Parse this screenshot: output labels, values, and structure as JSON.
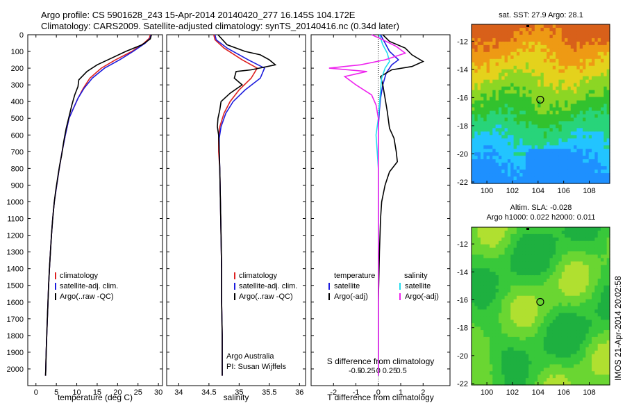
{
  "header": {
    "line1": "Argo profile: CS 5901628_243 15-Apr-2014 20140420_277 16.145S 104.172E",
    "line2": "Climatology: CARS2009. Satellite-adjusted climatology: synTS_20140416.nc (0.34d later)"
  },
  "side_label": "IMOS 21-Apr-2014 20:02:58",
  "colors": {
    "climatology": "#dd2020",
    "satellite": "#1c1cdd",
    "argo": "#000000",
    "satellite_diff_s": "#22ddee",
    "argo_diff_s": "#ee22ee"
  },
  "chart_data": [
    {
      "id": "temperature",
      "type": "line",
      "xlabel": "temperature (deg C)",
      "ylabel": "",
      "xlim": [
        -2,
        31
      ],
      "ylim": [
        2100,
        0
      ],
      "xticks": [
        0,
        5,
        10,
        15,
        20,
        25,
        30
      ],
      "yticks": [
        0,
        100,
        200,
        300,
        400,
        500,
        600,
        700,
        800,
        900,
        1000,
        1100,
        1200,
        1300,
        1400,
        1500,
        1600,
        1700,
        1800,
        1900,
        2000
      ],
      "legend": [
        "climatology",
        "satellite-adj. clim.",
        "Argo(..raw -QC)"
      ],
      "series": [
        {
          "name": "climatology",
          "color": "#dd2020",
          "points": [
            [
              28,
              0
            ],
            [
              27.8,
              20
            ],
            [
              26.5,
              50
            ],
            [
              23.5,
              100
            ],
            [
              19.5,
              150
            ],
            [
              16,
              200
            ],
            [
              13.2,
              260
            ],
            [
              11.6,
              320
            ],
            [
              10.3,
              380
            ],
            [
              9.2,
              440
            ],
            [
              8.1,
              500
            ],
            [
              7.2,
              600
            ],
            [
              6.4,
              700
            ],
            [
              5.7,
              800
            ],
            [
              5.1,
              900
            ],
            [
              4.5,
              1000
            ],
            [
              4.1,
              1100
            ],
            [
              3.8,
              1200
            ],
            [
              3.55,
              1300
            ],
            [
              3.3,
              1400
            ],
            [
              3.1,
              1500
            ],
            [
              2.95,
              1600
            ],
            [
              2.8,
              1700
            ],
            [
              2.65,
              1800
            ],
            [
              2.5,
              1900
            ],
            [
              2.4,
              2000
            ],
            [
              2.35,
              2040
            ]
          ]
        },
        {
          "name": "satellite-adj. clim.",
          "color": "#1c1cdd",
          "points": [
            [
              28.2,
              0
            ],
            [
              28,
              20
            ],
            [
              26.8,
              50
            ],
            [
              23.8,
              100
            ],
            [
              20.5,
              150
            ],
            [
              16.8,
              200
            ],
            [
              13.8,
              260
            ],
            [
              11.8,
              320
            ],
            [
              10.3,
              380
            ],
            [
              9.2,
              440
            ],
            [
              8.1,
              500
            ],
            [
              7.2,
              600
            ],
            [
              6.4,
              700
            ],
            [
              5.7,
              800
            ],
            [
              5.1,
              900
            ],
            [
              4.5,
              1000
            ],
            [
              4.1,
              1100
            ],
            [
              3.8,
              1200
            ],
            [
              3.55,
              1300
            ],
            [
              3.3,
              1400
            ],
            [
              3.1,
              1500
            ],
            [
              2.95,
              1600
            ],
            [
              2.8,
              1700
            ],
            [
              2.65,
              1800
            ],
            [
              2.5,
              1900
            ],
            [
              2.4,
              2000
            ],
            [
              2.35,
              2040
            ]
          ]
        },
        {
          "name": "Argo(..raw -QC)",
          "color": "#000000",
          "points": [
            [
              28.3,
              0
            ],
            [
              28,
              25
            ],
            [
              26,
              60
            ],
            [
              22,
              100
            ],
            [
              18.5,
              140
            ],
            [
              15,
              180
            ],
            [
              12.5,
              220
            ],
            [
              10.5,
              270
            ],
            [
              10.3,
              310
            ],
            [
              9.5,
              360
            ],
            [
              8.8,
              420
            ],
            [
              8.2,
              480
            ],
            [
              7.4,
              560
            ],
            [
              6.8,
              640
            ],
            [
              6.3,
              720
            ],
            [
              5.8,
              780
            ],
            [
              5.3,
              860
            ],
            [
              4.8,
              940
            ],
            [
              4.5,
              1000
            ],
            [
              4.1,
              1100
            ],
            [
              3.8,
              1200
            ],
            [
              3.55,
              1300
            ],
            [
              3.3,
              1400
            ],
            [
              3.1,
              1500
            ],
            [
              2.95,
              1600
            ],
            [
              2.8,
              1700
            ],
            [
              2.65,
              1800
            ],
            [
              2.5,
              1900
            ],
            [
              2.4,
              2000
            ],
            [
              2.35,
              2040
            ]
          ]
        }
      ]
    },
    {
      "id": "salinity",
      "type": "line",
      "xlabel": "salinity",
      "ylabel": "",
      "xlim": [
        33.8,
        36.1
      ],
      "ylim": [
        2100,
        0
      ],
      "xticks": [
        34,
        34.5,
        35,
        35.5,
        36
      ],
      "legend": [
        "climatology",
        "satellite-adj. clim.",
        "Argo(..raw -QC)"
      ],
      "annotation": [
        "Argo Australia",
        "PI: Susan Wijffels"
      ],
      "series": [
        {
          "name": "climatology",
          "color": "#dd2020",
          "points": [
            [
              34.58,
              0
            ],
            [
              34.6,
              30
            ],
            [
              34.75,
              80
            ],
            [
              35.05,
              150
            ],
            [
              35.3,
              200
            ],
            [
              35.2,
              260
            ],
            [
              35.0,
              330
            ],
            [
              34.85,
              400
            ],
            [
              34.75,
              470
            ],
            [
              34.68,
              550
            ],
            [
              34.66,
              620
            ],
            [
              34.66,
              700
            ],
            [
              34.68,
              800
            ],
            [
              34.69,
              1000
            ],
            [
              34.7,
              1200
            ],
            [
              34.71,
              1400
            ],
            [
              34.71,
              1600
            ],
            [
              34.72,
              1800
            ],
            [
              34.72,
              2040
            ]
          ]
        },
        {
          "name": "satellite-adj. clim.",
          "color": "#1c1cdd",
          "points": [
            [
              34.6,
              0
            ],
            [
              34.62,
              30
            ],
            [
              34.8,
              80
            ],
            [
              35.15,
              150
            ],
            [
              35.42,
              200
            ],
            [
              35.35,
              260
            ],
            [
              35.1,
              330
            ],
            [
              34.9,
              400
            ],
            [
              34.78,
              470
            ],
            [
              34.7,
              550
            ],
            [
              34.67,
              620
            ],
            [
              34.67,
              700
            ],
            [
              34.68,
              800
            ],
            [
              34.69,
              1000
            ],
            [
              34.7,
              1200
            ],
            [
              34.71,
              1400
            ],
            [
              34.71,
              1600
            ],
            [
              34.72,
              1800
            ],
            [
              34.72,
              2040
            ]
          ]
        },
        {
          "name": "Argo(..raw -QC)",
          "color": "#000000",
          "points": [
            [
              34.65,
              0
            ],
            [
              34.8,
              60
            ],
            [
              35.1,
              100
            ],
            [
              35.35,
              120
            ],
            [
              35.5,
              150
            ],
            [
              35.6,
              180
            ],
            [
              35.2,
              210
            ],
            [
              34.95,
              220
            ],
            [
              34.92,
              260
            ],
            [
              35.05,
              300
            ],
            [
              34.85,
              350
            ],
            [
              34.7,
              400
            ],
            [
              34.68,
              450
            ],
            [
              34.65,
              500
            ],
            [
              34.64,
              550
            ],
            [
              34.66,
              600
            ],
            [
              34.67,
              700
            ],
            [
              34.68,
              800
            ],
            [
              34.69,
              1000
            ],
            [
              34.7,
              1200
            ],
            [
              34.71,
              1400
            ],
            [
              34.71,
              1600
            ],
            [
              34.72,
              1800
            ],
            [
              34.72,
              2040
            ]
          ]
        }
      ]
    },
    {
      "id": "difference",
      "type": "line",
      "xlabel": "T difference from climatology",
      "top_label": "S difference from climatology",
      "xlim": [
        -3,
        3.2
      ],
      "ylim": [
        2100,
        0
      ],
      "xticks": [
        -2,
        -1,
        0,
        1,
        2
      ],
      "s_ticks": [
        -0.5,
        -0.25,
        0,
        0.25,
        0.5
      ],
      "legend": {
        "temperature_title": "temperature",
        "salinity_title": "salinity",
        "temperature": [
          "satellite",
          "Argo(-adj)"
        ],
        "salinity": [
          "satellite",
          "Argo(-adj)"
        ]
      },
      "series": [
        {
          "name": "temperature satellite",
          "color": "#1c1cdd",
          "points": [
            [
              0.1,
              0
            ],
            [
              0.3,
              50
            ],
            [
              0.5,
              100
            ],
            [
              0.9,
              150
            ],
            [
              0.6,
              180
            ],
            [
              0.35,
              230
            ],
            [
              0.2,
              300
            ],
            [
              0.1,
              380
            ],
            [
              0.05,
              450
            ],
            [
              0,
              550
            ],
            [
              0,
              700
            ],
            [
              0,
              900
            ],
            [
              0,
              1200
            ],
            [
              0,
              1600
            ],
            [
              0,
              2040
            ]
          ]
        },
        {
          "name": "temperature Argo(-adj)",
          "color": "#000000",
          "points": [
            [
              0.2,
              0
            ],
            [
              0.5,
              40
            ],
            [
              1.2,
              80
            ],
            [
              1.5,
              120
            ],
            [
              2.0,
              160
            ],
            [
              1.5,
              190
            ],
            [
              0.6,
              210
            ],
            [
              0.1,
              250
            ],
            [
              0.2,
              300
            ],
            [
              0.3,
              380
            ],
            [
              0.4,
              460
            ],
            [
              0.5,
              560
            ],
            [
              0.7,
              620
            ],
            [
              0.8,
              700
            ],
            [
              0.85,
              760
            ],
            [
              0.5,
              820
            ],
            [
              0.3,
              900
            ],
            [
              0.15,
              1000
            ],
            [
              0.1,
              1100
            ],
            [
              0.05,
              1300
            ],
            [
              0,
              1600
            ],
            [
              0,
              2040
            ]
          ]
        },
        {
          "name": "salinity satellite",
          "color": "#22ddee",
          "points": [
            [
              0.05,
              0
            ],
            [
              0.2,
              60
            ],
            [
              0.4,
              110
            ],
            [
              0.5,
              160
            ],
            [
              0.3,
              200
            ],
            [
              0.15,
              260
            ],
            [
              0.1,
              330
            ],
            [
              0.05,
              420
            ],
            [
              0,
              500
            ],
            [
              -0.1,
              600
            ],
            [
              -0.05,
              700
            ],
            [
              0,
              800
            ],
            [
              0,
              1000
            ],
            [
              0,
              1300
            ],
            [
              0,
              1700
            ],
            [
              0,
              2040
            ]
          ]
        },
        {
          "name": "salinity Argo(-adj)",
          "color": "#ee22ee",
          "points": [
            [
              -0.3,
              0
            ],
            [
              0.2,
              30
            ],
            [
              0.8,
              70
            ],
            [
              1.2,
              110
            ],
            [
              0.3,
              150
            ],
            [
              -0.8,
              180
            ],
            [
              -2.2,
              200
            ],
            [
              -0.5,
              220
            ],
            [
              -1.5,
              250
            ],
            [
              -1.0,
              300
            ],
            [
              -0.3,
              360
            ],
            [
              -0.1,
              420
            ],
            [
              0,
              500
            ],
            [
              0,
              600
            ],
            [
              0,
              800
            ],
            [
              0,
              1100
            ],
            [
              0,
              1500
            ],
            [
              0,
              2040
            ]
          ]
        }
      ]
    },
    {
      "id": "sst-map",
      "type": "heatmap",
      "title": "sat. SST: 27.9 Argo: 28.1",
      "xlim": [
        98.8,
        109.6
      ],
      "ylim": [
        -22.1,
        -10.8
      ],
      "xticks": [
        100,
        102,
        104,
        106,
        108
      ],
      "yticks": [
        -12,
        -14,
        -16,
        -18,
        -20,
        -22
      ],
      "marker": [
        104.17,
        -16.15
      ],
      "palette": [
        "#1e90ff",
        "#22c4ff",
        "#28d47a",
        "#32c22e",
        "#8cd624",
        "#e4d21c",
        "#ee9a14",
        "#d8601a"
      ]
    },
    {
      "id": "sla-map",
      "type": "heatmap",
      "title": "Altim. SLA: -0.028",
      "subtitle": "Argo h1000: 0.022 h2000: 0.011",
      "xlim": [
        98.8,
        109.6
      ],
      "ylim": [
        -22.1,
        -10.8
      ],
      "xticks": [
        100,
        102,
        104,
        106,
        108
      ],
      "yticks": [
        -12,
        -14,
        -16,
        -18,
        -20,
        -22
      ],
      "marker": [
        104.17,
        -16.15
      ],
      "palette": [
        "#1eb040",
        "#38c83a",
        "#6ad632",
        "#b0e030",
        "#e2e42a"
      ]
    }
  ]
}
